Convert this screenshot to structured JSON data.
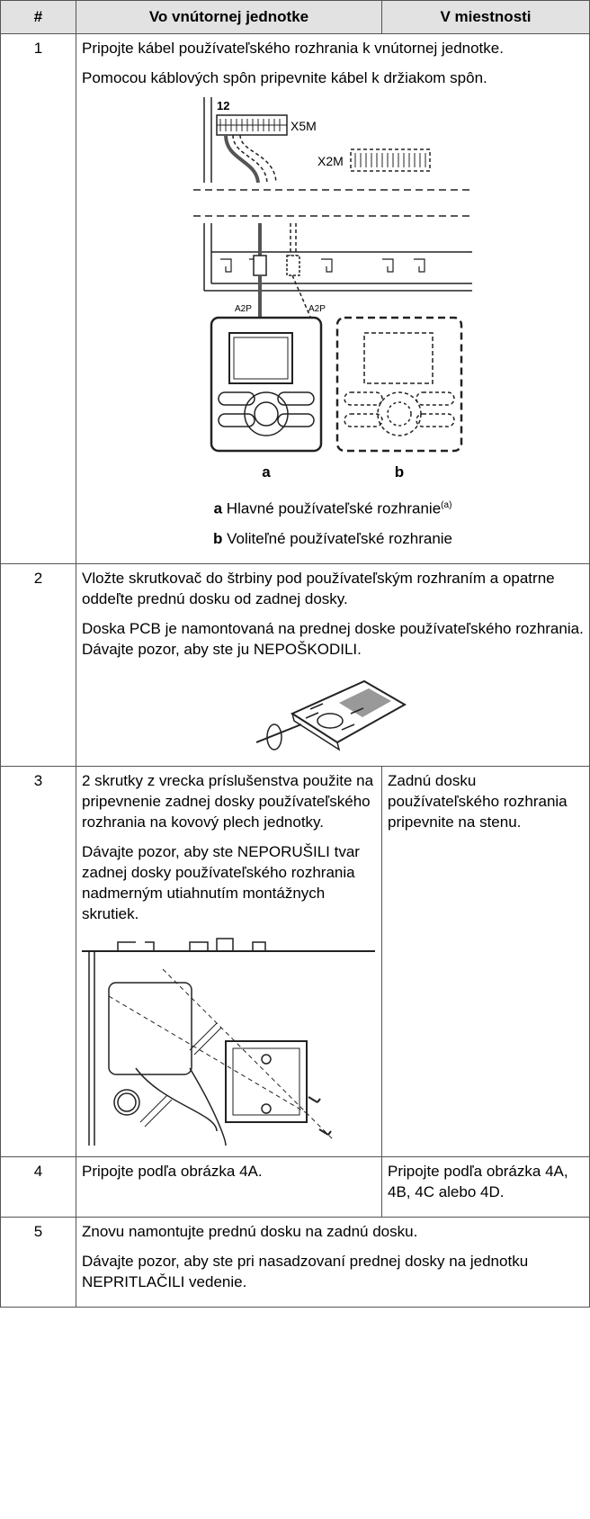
{
  "table": {
    "header": [
      "#",
      "Vo vnútornej jednotke",
      "V miestnosti"
    ],
    "rows": [
      {
        "number": "1",
        "paragraphs": [
          "Pripojte kábel používateľského rozhrania k vnútornej jednotke.",
          "Pomocou káblových spôn pripevnite kábel k držiakom spôn."
        ],
        "figure_labels": [
          "12",
          "X5M",
          "X2M",
          "A2P",
          "A2P",
          "a",
          "b"
        ],
        "captions": [
          {
            "key": "a",
            "text": "Hlavné používateľské rozhranie",
            "note": "(a)"
          },
          {
            "key": "b",
            "text": "Voliteľné používateľské rozhranie"
          }
        ]
      },
      {
        "number": "2",
        "paragraphs": [
          "Vložte skrutkovač do štrbiny pod používateľským rozhraním a opatrne oddeľte prednú dosku od zadnej dosky.",
          "Doska PCB je namontovaná na prednej doske používateľského rozhrania. Dávajte pozor, aby ste ju NEPOŠKODILI."
        ]
      },
      {
        "number": "3",
        "indoor": [
          "2 skrutky z vrecka príslušenstva použite na pripevnenie zadnej dosky používateľského rozhrania na kovový plech jednotky.",
          "Dávajte pozor, aby ste NEPORUŠILI tvar zadnej dosky používateľského rozhrania nadmerným utiahnutím montážnych skrutiek."
        ],
        "room": [
          "Zadnú dosku používateľského rozhrania pripevnite na stenu."
        ]
      },
      {
        "number": "4",
        "indoor": [
          "Pripojte podľa obrázka 4A."
        ],
        "room": [
          "Pripojte podľa obrázka 4A, 4B, 4C alebo 4D."
        ]
      },
      {
        "number": "5",
        "paragraphs": [
          "Znovu namontujte prednú dosku na zadnú dosku.",
          "Dávajte pozor, aby ste pri nasadzovaní prednej dosky na jednotku NEPRITLAČILI vedenie."
        ]
      }
    ]
  }
}
